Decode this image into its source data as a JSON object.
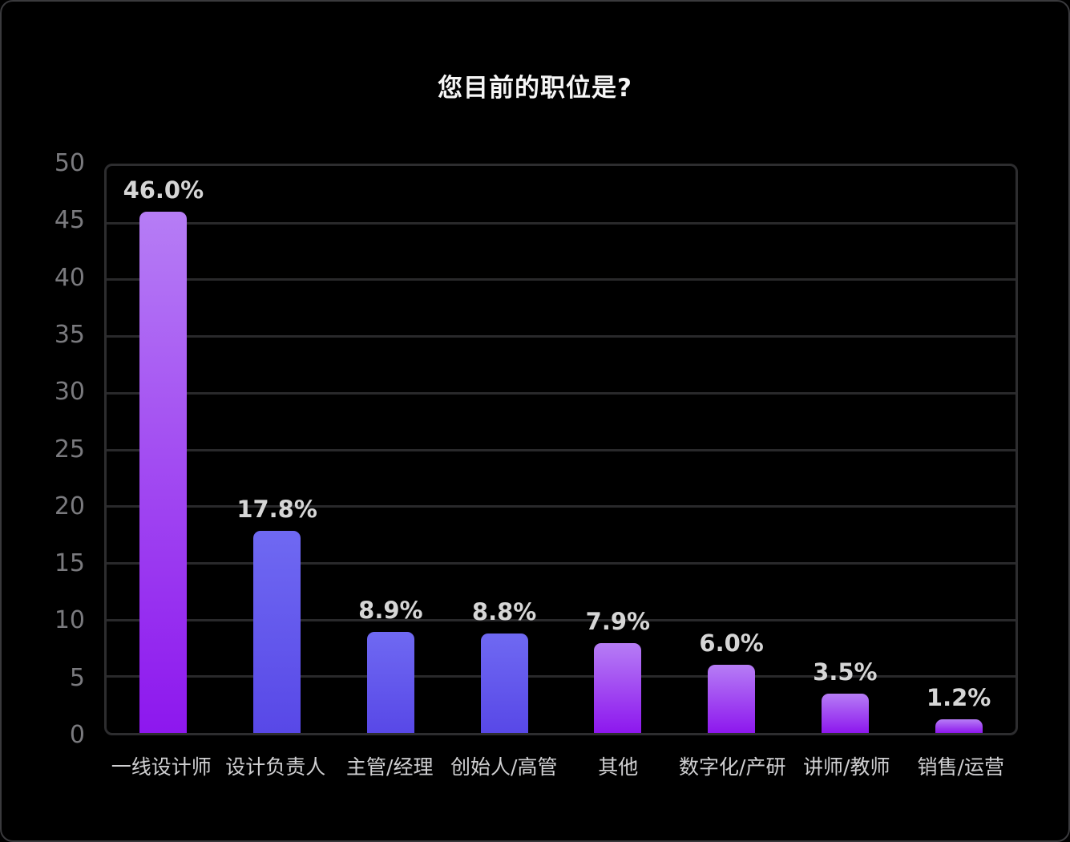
{
  "chart_data": {
    "type": "bar",
    "title": "您目前的职位是?",
    "categories": [
      "一线设计师",
      "设计负责人",
      "主管/经理",
      "创始人/高管",
      "其他",
      "数字化/产研",
      "讲师/教师",
      "销售/运营"
    ],
    "values": [
      46.0,
      17.8,
      8.9,
      8.8,
      7.9,
      6.0,
      3.5,
      1.2
    ],
    "value_labels": [
      "46.0%",
      "17.8%",
      "8.9%",
      "8.8%",
      "7.9%",
      "6.0%",
      "3.5%",
      "1.2%"
    ],
    "xlabel": "",
    "ylabel": "",
    "ylim": [
      0,
      50
    ],
    "yticks": [
      0,
      5,
      10,
      15,
      20,
      25,
      30,
      35,
      40,
      45,
      50
    ],
    "grid": "horizontal",
    "legend": false,
    "bar_gradients": [
      {
        "top": "#b67df5",
        "bottom": "#8d17ee"
      },
      {
        "top": "#6f69f2",
        "bottom": "#5848e7"
      },
      {
        "top": "#6f69f2",
        "bottom": "#5848e7"
      },
      {
        "top": "#6f69f2",
        "bottom": "#5848e7"
      },
      {
        "top": "#b67df5",
        "bottom": "#8d17ee"
      },
      {
        "top": "#b67df5",
        "bottom": "#8d17ee"
      },
      {
        "top": "#b67df5",
        "bottom": "#8d17ee"
      },
      {
        "top": "#b67df5",
        "bottom": "#8d17ee"
      }
    ],
    "colors": {
      "background": "#000000",
      "card_border": "#3a3a3d",
      "plot_border": "#2d2d2f",
      "gridline": "#29292b",
      "title_text": "#f6f6f6",
      "y_tick_text": "#7a7a7e",
      "x_tick_text": "#d0d0d2",
      "value_label_text": "#d6d6d6"
    }
  }
}
